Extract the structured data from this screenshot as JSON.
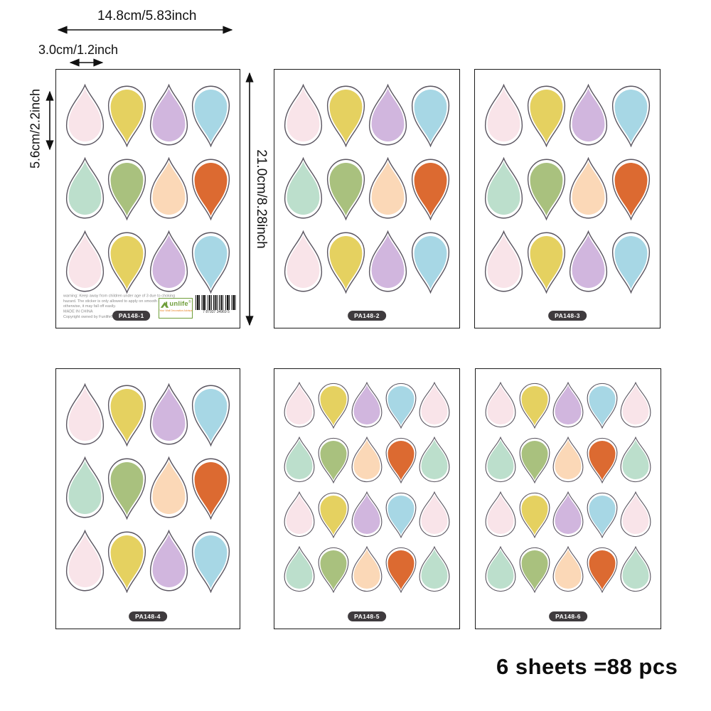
{
  "annotations": {
    "sheet_width": "14.8cm/5.83inch",
    "drop_width": "3.0cm/1.2inch",
    "drop_height": "5.6cm/2.2inch",
    "sheet_height": "21.0cm/8.28inch",
    "total": "6 sheets =88 pcs"
  },
  "palette": {
    "pink": "#f9e4e9",
    "yellow": "#e5d160",
    "lavender": "#d1b6de",
    "blue": "#a7d7e5",
    "mint": "#bcdfcc",
    "sage": "#a9c17e",
    "peach": "#fbd8b7",
    "orange": "#dc6a31"
  },
  "drop_outline_color": "#5a5560",
  "sheets": [
    {
      "label": "PA148-1",
      "drops": [
        [
          "pink:up",
          "yellow:down",
          "lavender:up",
          "blue:down"
        ],
        [
          "mint:up",
          "sage:down",
          "peach:up",
          "orange:down"
        ],
        [
          "pink:up",
          "yellow:down",
          "lavender:up",
          "blue:down"
        ]
      ]
    },
    {
      "label": "PA148-2",
      "drops": [
        [
          "pink:up",
          "yellow:down",
          "lavender:up",
          "blue:down"
        ],
        [
          "mint:up",
          "sage:down",
          "peach:up",
          "orange:down"
        ],
        [
          "pink:up",
          "yellow:down",
          "lavender:up",
          "blue:down"
        ]
      ]
    },
    {
      "label": "PA148-3",
      "drops": [
        [
          "pink:up",
          "yellow:down",
          "lavender:up",
          "blue:down"
        ],
        [
          "mint:up",
          "sage:down",
          "peach:up",
          "orange:down"
        ],
        [
          "pink:up",
          "yellow:down",
          "lavender:up",
          "blue:down"
        ]
      ]
    },
    {
      "label": "PA148-4",
      "drops": [
        [
          "pink:up",
          "yellow:down",
          "lavender:up",
          "blue:down"
        ],
        [
          "mint:up",
          "sage:down",
          "peach:up",
          "orange:down"
        ],
        [
          "pink:up",
          "yellow:down",
          "lavender:up",
          "blue:down"
        ]
      ]
    },
    {
      "label": "PA148-5",
      "drops": [
        [
          "pink:up",
          "yellow:down",
          "lavender:up",
          "blue:down",
          "pink:up"
        ],
        [
          "mint:up",
          "sage:down",
          "peach:up",
          "orange:down",
          "mint:up"
        ],
        [
          "pink:up",
          "yellow:down",
          "lavender:up",
          "blue:down",
          "pink:up"
        ],
        [
          "mint:up",
          "sage:down",
          "peach:up",
          "orange:down",
          "mint:up"
        ]
      ]
    },
    {
      "label": "PA148-6",
      "drops": [
        [
          "pink:up",
          "yellow:down",
          "lavender:up",
          "blue:down",
          "pink:up"
        ],
        [
          "mint:up",
          "sage:down",
          "peach:up",
          "orange:down",
          "mint:up"
        ],
        [
          "pink:up",
          "yellow:down",
          "lavender:up",
          "blue:down",
          "pink:up"
        ],
        [
          "mint:up",
          "sage:down",
          "peach:up",
          "orange:down",
          "mint:up"
        ]
      ]
    }
  ],
  "sheet1_footer": {
    "warning_lines": [
      "warning: Keep away from children under age of 3 due to choking",
      "hazard. The sticker is only allowed to apply on smooth surface,",
      "otherwise, it may fall off easily.",
      "MADE IN CHINA",
      "Copyright owned by Funlife®"
    ],
    "logo_text": "unlife",
    "reg_mark": "®",
    "tagline": "Your Wall Decoration Advisor",
    "barcode_digits": "7 87937 34969 5"
  }
}
